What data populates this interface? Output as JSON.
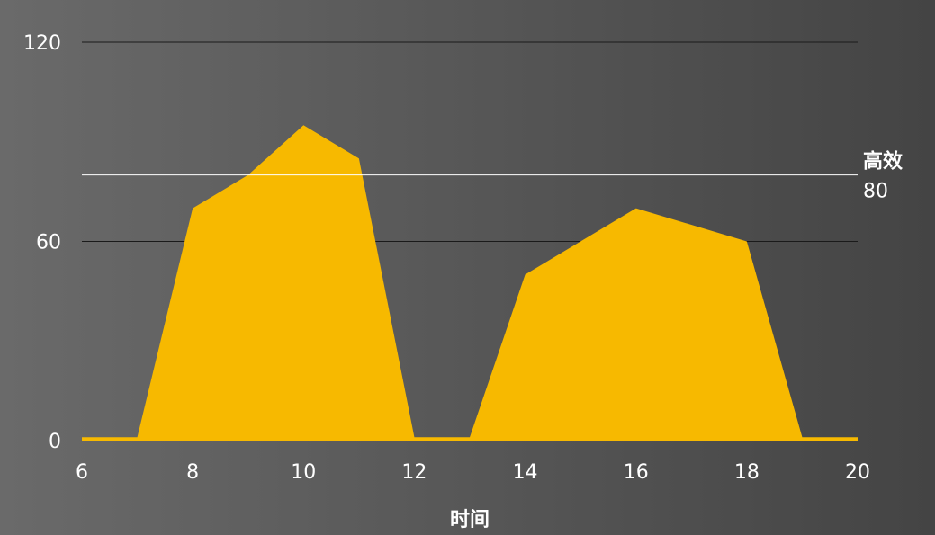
{
  "chart_data": {
    "type": "area",
    "x": [
      6,
      7,
      8,
      9,
      10,
      11,
      12,
      13,
      14,
      15,
      16,
      17,
      18,
      19,
      20
    ],
    "series": [
      {
        "values": [
          1,
          1,
          70,
          80,
          95,
          85,
          1,
          1,
          50,
          60,
          70,
          65,
          60,
          1,
          1
        ],
        "color": "#f7b900"
      }
    ],
    "xlabel": "时间",
    "ylabel": "",
    "xlim": [
      6,
      20
    ],
    "ylim": [
      0,
      120
    ],
    "x_ticks": [
      "6",
      "8",
      "10",
      "12",
      "14",
      "16",
      "18",
      "20"
    ],
    "y_ticks": [
      "0",
      "60",
      "120"
    ],
    "grid": true,
    "reference_line": {
      "label": "高效",
      "value": 80,
      "value_text": "80",
      "color": "#ffffff"
    },
    "grid_color": "#1a1a1a"
  }
}
